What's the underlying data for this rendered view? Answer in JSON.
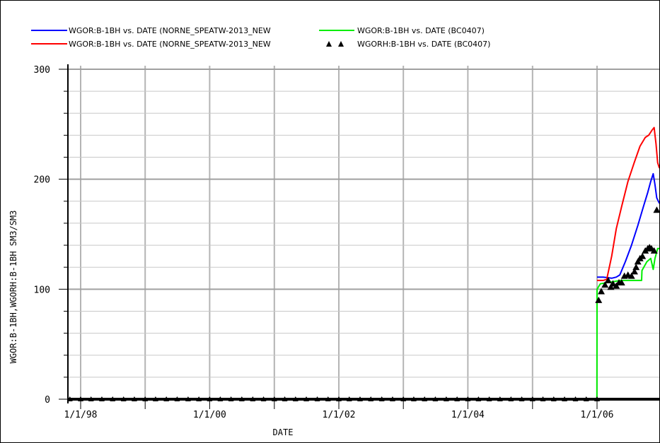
{
  "chart_data": {
    "type": "line",
    "xlabel": "DATE",
    "ylabel": "WGOR:B-1BH,WGORH:B-1BH   SM3/SM3",
    "ylim": [
      0,
      300
    ],
    "x_range": [
      "1997-07-01",
      "2007-01-20"
    ],
    "x_ticks": [
      {
        "date": "1998-01-01",
        "label": "1/1/98"
      },
      {
        "date": "2000-01-01",
        "label": "1/1/00"
      },
      {
        "date": "2002-01-01",
        "label": "1/1/02"
      },
      {
        "date": "2004-01-01",
        "label": "1/1/04"
      },
      {
        "date": "2006-01-01",
        "label": "1/1/06"
      }
    ],
    "y_ticks": [
      0,
      100,
      200,
      300
    ],
    "grid": true,
    "legend_position": "top",
    "series": [
      {
        "name": "WGOR:B-1BH  vs.  DATE (NORNE_SPEATW-2013_NEW",
        "color": "#0000ff",
        "style": "line",
        "points": [
          [
            "2006-01-01",
            111
          ],
          [
            "2006-02-05",
            111
          ],
          [
            "2006-03-25",
            110
          ],
          [
            "2006-04-20",
            111
          ],
          [
            "2006-05-10",
            113
          ],
          [
            "2006-06-10",
            125
          ],
          [
            "2006-07-15",
            140
          ],
          [
            "2006-08-20",
            158
          ],
          [
            "2006-09-20",
            175
          ],
          [
            "2006-10-15",
            188
          ],
          [
            "2006-11-01",
            198
          ],
          [
            "2006-11-15",
            205
          ],
          [
            "2006-11-25",
            195
          ],
          [
            "2006-12-05",
            183
          ],
          [
            "2006-12-20",
            178
          ]
        ]
      },
      {
        "name": "WGOR:B-1BH  vs.  DATE (NORNE_SPEATW-2013_NEW",
        "color": "#ff0000",
        "style": "line",
        "points": [
          [
            "2006-01-01",
            108
          ],
          [
            "2006-02-05",
            108
          ],
          [
            "2006-02-25",
            109
          ],
          [
            "2006-03-25",
            130
          ],
          [
            "2006-04-20",
            155
          ],
          [
            "2006-05-20",
            175
          ],
          [
            "2006-06-25",
            198
          ],
          [
            "2006-07-30",
            215
          ],
          [
            "2006-09-01",
            230
          ],
          [
            "2006-10-01",
            238
          ],
          [
            "2006-10-20",
            240
          ],
          [
            "2006-11-10",
            245
          ],
          [
            "2006-11-20",
            247
          ],
          [
            "2006-12-01",
            232
          ],
          [
            "2006-12-10",
            215
          ],
          [
            "2006-12-20",
            210
          ]
        ]
      },
      {
        "name": "WGOR:B-1BH  vs.  DATE (BC0407)",
        "color": "#00ee00",
        "style": "line",
        "points": [
          [
            "2005-12-31",
            0
          ],
          [
            "2006-01-01",
            100
          ],
          [
            "2006-01-20",
            105
          ],
          [
            "2006-03-01",
            106
          ],
          [
            "2006-05-15",
            108
          ],
          [
            "2006-07-15",
            108
          ],
          [
            "2006-09-10",
            108
          ],
          [
            "2006-09-12",
            117
          ],
          [
            "2006-10-10",
            125
          ],
          [
            "2006-11-01",
            128
          ],
          [
            "2006-11-15",
            118
          ],
          [
            "2006-11-25",
            128
          ],
          [
            "2006-12-10",
            137
          ],
          [
            "2006-12-20",
            137
          ]
        ]
      },
      {
        "name": "WGORH:B-1BH  vs.  DATE (BC0407)",
        "color": "#000000",
        "style": "markers",
        "marker": "triangle",
        "points": [
          [
            "2006-01-10",
            90
          ],
          [
            "2006-01-25",
            98
          ],
          [
            "2006-02-15",
            104
          ],
          [
            "2006-03-05",
            108
          ],
          [
            "2006-03-20",
            102
          ],
          [
            "2006-04-01",
            105
          ],
          [
            "2006-04-20",
            103
          ],
          [
            "2006-05-05",
            106
          ],
          [
            "2006-05-20",
            106
          ],
          [
            "2006-06-05",
            112
          ],
          [
            "2006-06-25",
            113
          ],
          [
            "2006-07-15",
            112
          ],
          [
            "2006-08-01",
            116
          ],
          [
            "2006-08-10",
            120
          ],
          [
            "2006-08-20",
            125
          ],
          [
            "2006-09-01",
            128
          ],
          [
            "2006-09-15",
            130
          ],
          [
            "2006-10-01",
            135
          ],
          [
            "2006-10-15",
            137
          ],
          [
            "2006-10-25",
            138
          ],
          [
            "2006-11-05",
            137
          ],
          [
            "2006-11-20",
            135
          ],
          [
            "2006-12-05",
            172
          ]
        ]
      }
    ],
    "history_zero_markers": {
      "color": "#000000",
      "dates": [
        "1997-07-01",
        "1997-09-01",
        "1997-11-01",
        "1998-01-01",
        "1998-03-01",
        "1998-05-01",
        "1998-07-01",
        "1998-09-01",
        "1998-11-01",
        "1999-01-01",
        "1999-03-01",
        "1999-05-01",
        "1999-07-01",
        "1999-09-01",
        "1999-11-01",
        "2000-01-01",
        "2000-03-01",
        "2000-05-01",
        "2000-07-01",
        "2000-09-01",
        "2000-11-01",
        "2001-01-01",
        "2001-03-01",
        "2001-05-01",
        "2001-07-01",
        "2001-09-01",
        "2001-11-01",
        "2002-01-01",
        "2002-03-01",
        "2002-05-01",
        "2002-07-01",
        "2002-09-01",
        "2002-11-01",
        "2003-01-01",
        "2003-03-01",
        "2003-05-01",
        "2003-07-01",
        "2003-09-01",
        "2003-11-01",
        "2004-01-01",
        "2004-03-01",
        "2004-05-01",
        "2004-07-01",
        "2004-09-01",
        "2004-11-01",
        "2005-01-01",
        "2005-03-01",
        "2005-05-01",
        "2005-07-01",
        "2005-09-01",
        "2005-11-01",
        "2006-01-01",
        "2006-12-20",
        "2007-01-15"
      ]
    }
  }
}
